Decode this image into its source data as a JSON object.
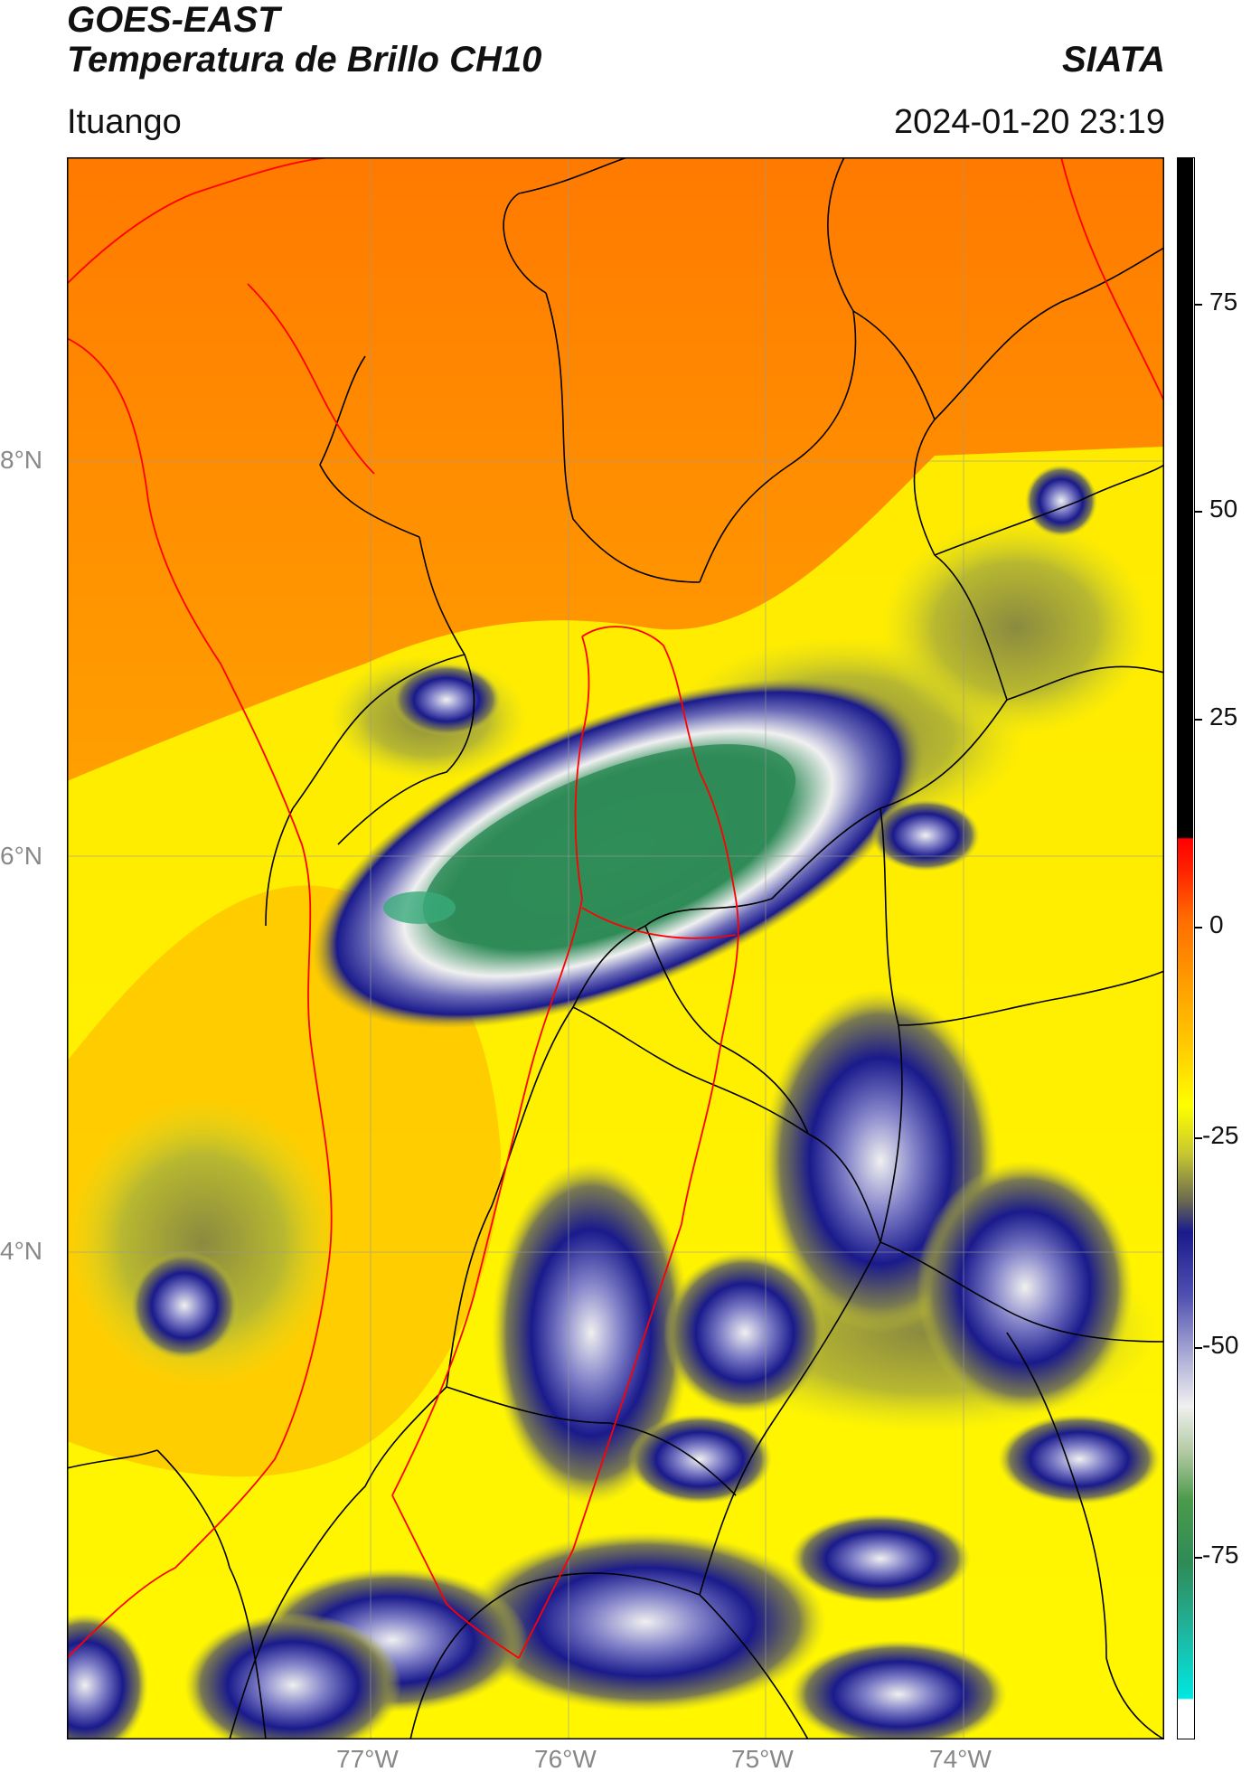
{
  "header": {
    "title_line1": "GOES-EAST",
    "title_line2": "Temperatura de Brillo CH10",
    "brand": "SIATA",
    "location": "Ituango",
    "datetime": "2024-01-20 23:19"
  },
  "map": {
    "lat_labels": [
      "8°N",
      "6°N",
      "4°N"
    ],
    "lon_labels": [
      "77°W",
      "76°W",
      "75°W",
      "74°W"
    ],
    "colors": {
      "warm_orange": "#FF8C00",
      "orange": "#FFA500",
      "yellow": "#FFFF00",
      "olive": "#9A9A3A",
      "navy": "#1A1A8C",
      "white": "#F0F0F0",
      "green": "#2E8B57",
      "teal": "#20B2AA",
      "border_black": "#000000",
      "border_red": "#FF0000"
    }
  },
  "colorbar": {
    "ticks": [
      "75",
      "50",
      "25",
      "0",
      "-25",
      "-50",
      "-75"
    ]
  }
}
